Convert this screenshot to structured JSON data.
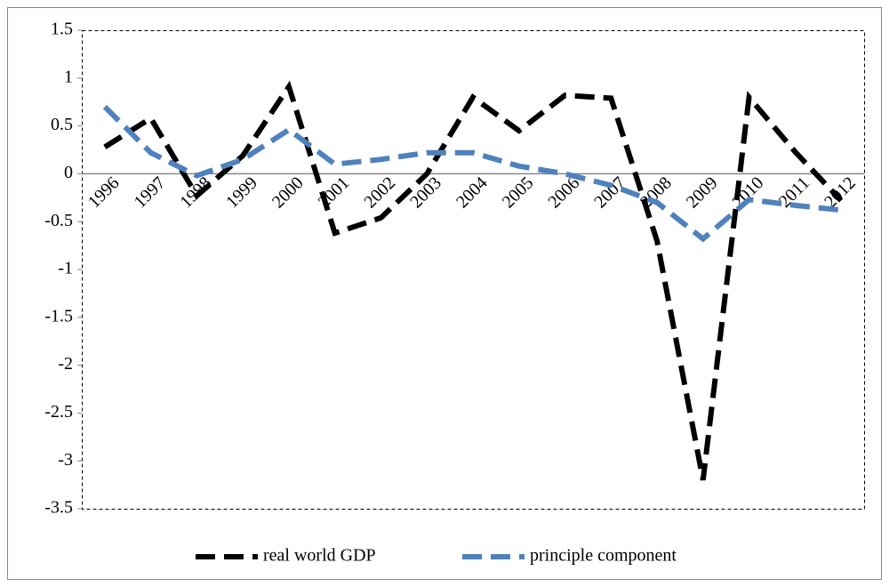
{
  "chart_data": {
    "type": "line",
    "categories": [
      "1996",
      "1997",
      "1998",
      "1999",
      "2000",
      "2001",
      "2002",
      "2003",
      "2004",
      "2005",
      "2006",
      "2007",
      "2008",
      "2009",
      "2010",
      "2011",
      "2012"
    ],
    "series": [
      {
        "name": "real world GDP",
        "color": "#000000",
        "values": [
          0.28,
          0.58,
          -0.23,
          0.19,
          0.91,
          -0.62,
          -0.46,
          0.0,
          0.8,
          0.45,
          0.82,
          0.79,
          -0.7,
          -3.2,
          0.8,
          0.23,
          -0.28
        ]
      },
      {
        "name": "principle component",
        "color": "#4f81bd",
        "values": [
          0.7,
          0.22,
          -0.02,
          0.15,
          0.46,
          0.1,
          0.15,
          0.22,
          0.22,
          0.08,
          0.0,
          -0.12,
          -0.3,
          -0.68,
          -0.27,
          -0.33,
          -0.38
        ]
      }
    ],
    "ylim": [
      -3.5,
      1.5
    ],
    "yticks": [
      1.5,
      1,
      0.5,
      0,
      -0.5,
      -1,
      -1.5,
      -2,
      -2.5,
      -3,
      -3.5
    ],
    "legend": "bottom",
    "dashed": true
  }
}
